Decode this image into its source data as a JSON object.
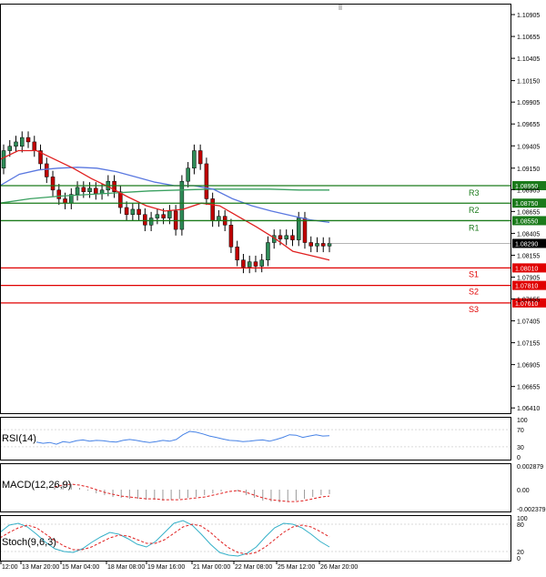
{
  "colors": {
    "background": "#ffffff",
    "axis": "#000000",
    "grid": "#d9d9d9",
    "bull_candle": "#2e8b57",
    "bear_candle": "#c00000",
    "ma_fast": "#e02020",
    "ma_mid": "#5a78e0",
    "ma_slow": "#3aa060",
    "resistance": "#1a7a1a",
    "support": "#e00000",
    "current_price_bg": "#000000",
    "rsi_line": "#4682e6",
    "macd_hist": "#9a9a9a",
    "macd_signal": "#e02020",
    "stoch_main": "#34b0c8",
    "stoch_signal": "#e02020"
  },
  "chart_data": [
    {
      "type": "candlestick",
      "price_axis": [
        "1.10905",
        "1.10655",
        "1.10405",
        "1.10150",
        "1.09905",
        "1.09655",
        "1.09405",
        "1.09150",
        "1.08905",
        "1.08655",
        "1.08405",
        "1.08155",
        "1.07905",
        "1.07655",
        "1.07405",
        "1.07155",
        "1.06905",
        "1.06655",
        "1.06410"
      ],
      "ylim": [
        1.0635,
        1.1103
      ],
      "x_labels": [
        "12:00",
        "13 Mar 20:00",
        "15 Mar 04:00",
        "18 Mar 08:00",
        "19 Mar 16:00",
        "21 Mar 00:00",
        "22 Mar 08:00",
        "25 Mar 12:00",
        "26 Mar 20:00"
      ],
      "current_price": "1.08290",
      "levels": [
        {
          "name": "R3",
          "value": 1.0895,
          "label": "1.08950"
        },
        {
          "name": "R2",
          "value": 1.0875,
          "label": "1.08750"
        },
        {
          "name": "R1",
          "value": 1.0855,
          "label": "1.08550"
        },
        {
          "name": "S1",
          "value": 1.0801,
          "label": "1.08010"
        },
        {
          "name": "S2",
          "value": 1.0781,
          "label": "1.07810"
        },
        {
          "name": "S3",
          "value": 1.0761,
          "label": "1.07610"
        }
      ],
      "candles": [
        [
          1.0915,
          1.0935
        ],
        [
          1.0935,
          1.094
        ],
        [
          1.094,
          1.0945
        ],
        [
          1.094,
          1.095
        ],
        [
          1.095,
          1.0945
        ],
        [
          1.0945,
          1.0935
        ],
        [
          1.0935,
          1.092
        ],
        [
          1.092,
          1.0905
        ],
        [
          1.0905,
          1.089
        ],
        [
          1.089,
          1.088
        ],
        [
          1.088,
          1.0875
        ],
        [
          1.0875,
          1.0885
        ],
        [
          1.0885,
          1.0893
        ],
        [
          1.0893,
          1.0888
        ],
        [
          1.0888,
          1.0892
        ],
        [
          1.0892,
          1.0886
        ],
        [
          1.0886,
          1.089
        ],
        [
          1.089,
          1.09
        ],
        [
          1.09,
          1.0888
        ],
        [
          1.0888,
          1.087
        ],
        [
          1.087,
          1.0862
        ],
        [
          1.0862,
          1.0868
        ],
        [
          1.0868,
          1.0862
        ],
        [
          1.0862,
          1.085
        ],
        [
          1.085,
          1.0858
        ],
        [
          1.0858,
          1.0862
        ],
        [
          1.0862,
          1.0858
        ],
        [
          1.0858,
          1.0866
        ],
        [
          1.0866,
          1.0845
        ],
        [
          1.0845,
          1.09
        ],
        [
          1.09,
          1.0915
        ],
        [
          1.0915,
          1.0935
        ],
        [
          1.0935,
          1.092
        ],
        [
          1.092,
          1.088
        ],
        [
          1.088,
          1.0855
        ],
        [
          1.0855,
          1.086
        ],
        [
          1.086,
          1.085
        ],
        [
          1.085,
          1.0825
        ],
        [
          1.0825,
          1.081
        ],
        [
          1.081,
          1.0802
        ],
        [
          1.0802,
          1.0808
        ],
        [
          1.0808,
          1.0803
        ],
        [
          1.0803,
          1.081
        ],
        [
          1.081,
          1.083
        ],
        [
          1.083,
          1.0838
        ],
        [
          1.0838,
          1.0834
        ],
        [
          1.0834,
          1.0838
        ],
        [
          1.0838,
          1.0833
        ],
        [
          1.0833,
          1.0858
        ],
        [
          1.0858,
          1.083
        ],
        [
          1.083,
          1.0826
        ],
        [
          1.0826,
          1.0829
        ],
        [
          1.0829,
          1.0826
        ],
        [
          1.0826,
          1.0829
        ]
      ],
      "ma_fast": [
        1.0925,
        1.0935,
        1.0935,
        1.0925,
        1.0915,
        1.0903,
        1.0893,
        1.0882,
        1.0872,
        1.0866,
        1.0868,
        1.0875,
        1.0872,
        1.086,
        1.0848,
        1.0835,
        1.082,
        1.0815,
        1.081
      ],
      "ma_mid": [
        1.0895,
        1.0908,
        1.0913,
        1.0915,
        1.0916,
        1.0915,
        1.0911,
        1.0905,
        1.0899,
        1.0895,
        1.0895,
        1.0891,
        1.088,
        1.0872,
        1.0866,
        1.0861,
        1.0856,
        1.0853
      ],
      "ma_slow": [
        1.0875,
        1.088,
        1.0883,
        1.0885,
        1.0887,
        1.0889,
        1.089,
        1.0891,
        1.0891,
        1.0891,
        1.089,
        1.089
      ]
    },
    {
      "type": "line",
      "title": "RSI(14)",
      "y_ticks": [
        "100",
        "70",
        "30",
        "0"
      ],
      "ylim": [
        0,
        100
      ],
      "values": [
        41,
        38,
        40,
        36,
        42,
        40,
        44,
        46,
        43,
        45,
        44,
        42,
        41,
        45,
        47,
        45,
        42,
        40,
        42,
        45,
        43,
        47,
        58,
        66,
        64,
        60,
        55,
        52,
        48,
        45,
        44,
        42,
        43,
        45,
        46,
        43,
        47,
        52,
        58,
        57,
        52,
        55,
        58,
        55,
        56
      ]
    },
    {
      "type": "bar",
      "title": "MACD(12,26,9)",
      "y_ticks": [
        "0.002879",
        "0.00",
        "-0.002379"
      ],
      "ylim": [
        -0.002379,
        0.002879
      ],
      "values": [
        0.0004,
        0.0008,
        0.0006,
        0.0002,
        -0.0001,
        -0.0004,
        -0.0006,
        -0.0008,
        -0.0009,
        -0.001,
        -0.001,
        -0.0011,
        -0.0011,
        -0.0012,
        -0.0011,
        -0.001,
        -0.0009,
        -0.0008,
        -0.0006,
        -0.0004,
        -0.0002,
        0.0,
        -0.0002,
        -0.0006,
        -0.0009,
        -0.0012,
        -0.0013,
        -0.0014,
        -0.0013,
        -0.0012,
        -0.001,
        -0.0008,
        -0.0006,
        -0.0005
      ],
      "signal": [
        0.0003,
        0.0005,
        0.0006,
        0.0005,
        0.0003,
        0.0,
        -0.0003,
        -0.0005,
        -0.0007,
        -0.0008,
        -0.0009,
        -0.001,
        -0.001,
        -0.0011,
        -0.0011,
        -0.0011,
        -0.001,
        -0.0009,
        -0.0008,
        -0.0006,
        -0.0004,
        -0.0002,
        -0.0001,
        -0.0003,
        -0.0006,
        -0.0009,
        -0.0011,
        -0.0012,
        -0.0013,
        -0.0013,
        -0.0012,
        -0.001,
        -0.0008,
        -0.0007
      ]
    },
    {
      "type": "line",
      "title": "Stoch(9,6,3)",
      "y_ticks": [
        "100",
        "80",
        "20",
        "0"
      ],
      "ylim": [
        0,
        100
      ],
      "values": [
        62,
        78,
        82,
        74,
        58,
        40,
        26,
        20,
        18,
        26,
        40,
        52,
        62,
        58,
        48,
        36,
        30,
        42,
        62,
        82,
        88,
        78,
        58,
        36,
        18,
        12,
        10,
        16,
        30,
        52,
        72,
        82,
        80,
        72,
        58,
        42,
        30
      ],
      "signal": [
        50,
        62,
        72,
        78,
        72,
        58,
        44,
        32,
        24,
        24,
        30,
        40,
        50,
        56,
        54,
        46,
        38,
        38,
        46,
        60,
        74,
        80,
        76,
        62,
        44,
        28,
        18,
        14,
        18,
        30,
        46,
        62,
        74,
        78,
        74,
        64,
        52
      ]
    }
  ]
}
